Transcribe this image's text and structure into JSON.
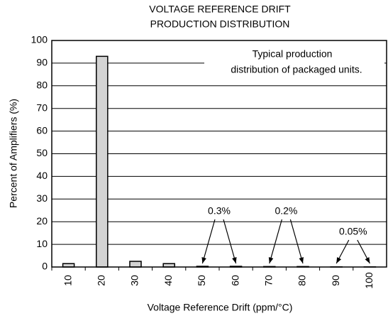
{
  "chart_data": {
    "type": "bar",
    "title": [
      "VOLTAGE REFERENCE DRIFT",
      "PRODUCTION DISTRIBUTION"
    ],
    "x_label": "Voltage Reference Drift (ppm/°C)",
    "y_label": "Percent of Amplifiers (%)",
    "note": [
      "Typical production",
      "distribution of packaged units."
    ],
    "annotations": [
      "0.3%",
      "0.2%",
      "0.05%"
    ],
    "categories": [
      "10",
      "20",
      "30",
      "40",
      "50",
      "60",
      "70",
      "80",
      "90",
      "100"
    ],
    "values": [
      1.5,
      93,
      2.5,
      1.5,
      0.3,
      0.3,
      0.2,
      0.2,
      0.05,
      0.05
    ],
    "color": "#d3d3d3",
    "ylim": [
      0,
      100
    ],
    "yticks": [
      0,
      10,
      20,
      30,
      40,
      50,
      60,
      70,
      80,
      90,
      100
    ],
    "grid": true
  }
}
